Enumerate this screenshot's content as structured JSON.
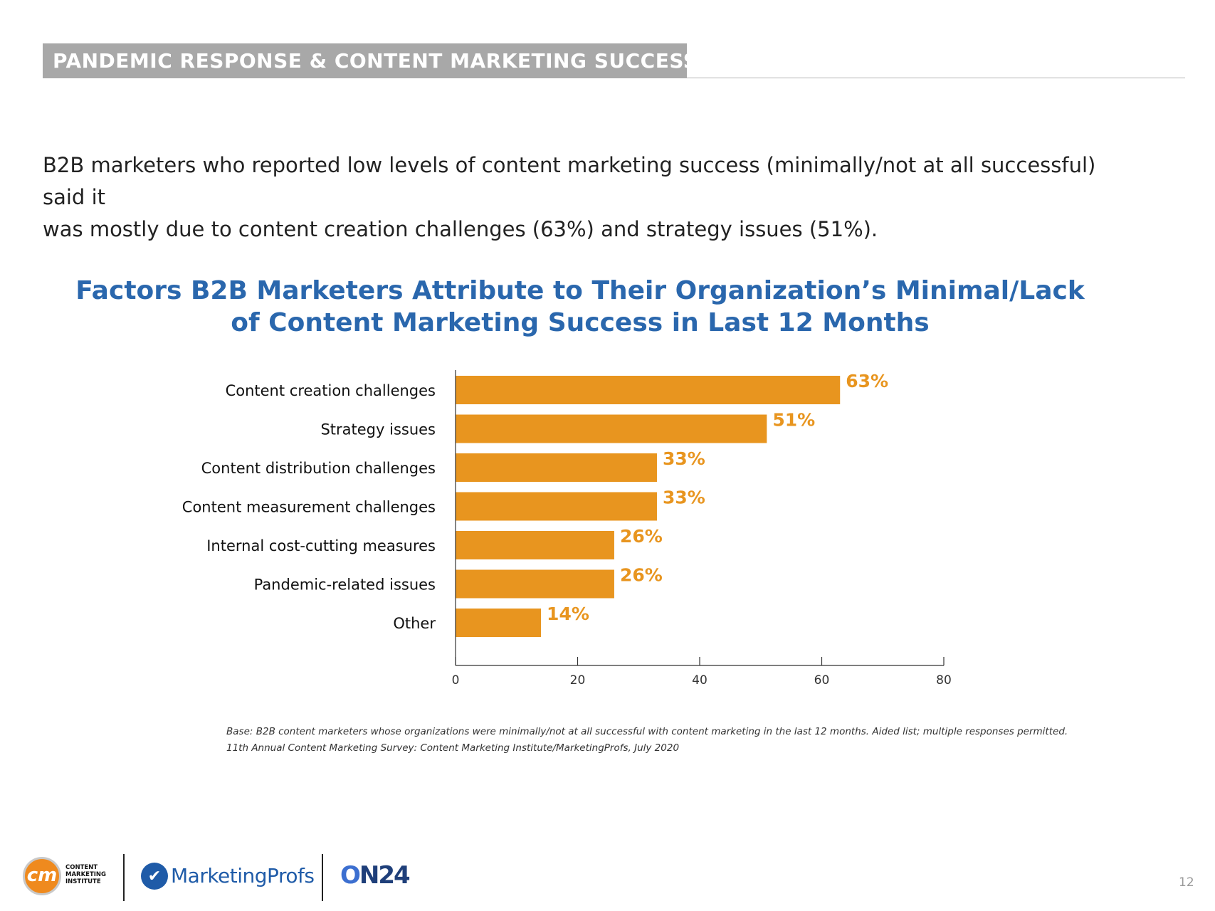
{
  "header": {
    "section_title": "PANDEMIC RESPONSE & CONTENT MARKETING SUCCESS"
  },
  "intro": {
    "line1": "B2B marketers who reported low levels of content marketing success (minimally/not at all successful) said it",
    "line2": "was mostly due to content creation challenges (63%) and strategy issues (51%)."
  },
  "chart_data": {
    "type": "bar",
    "orientation": "horizontal",
    "title_line1": "Factors B2B Marketers Attribute to Their Organization’s Minimal/Lack",
    "title_line2": "of Content Marketing Success in Last 12 Months",
    "categories": [
      "Content creation challenges",
      "Strategy issues",
      "Content distribution challenges",
      "Content measurement challenges",
      "Internal cost-cutting measures",
      "Pandemic-related issues",
      "Other"
    ],
    "values": [
      63,
      51,
      33,
      33,
      26,
      26,
      14
    ],
    "value_labels": [
      "63%",
      "51%",
      "33%",
      "33%",
      "26%",
      "26%",
      "14%"
    ],
    "xlim": [
      0,
      80
    ],
    "xticks": [
      0,
      20,
      40,
      60,
      80
    ],
    "xtick_labels": [
      "0",
      "20",
      "40",
      "60",
      "80"
    ],
    "bar_color": "#e8951f",
    "grid": false
  },
  "footnotes": {
    "base": "Base: B2B content marketers whose organizations were minimally/not at all successful with content marketing in the last 12 months. Aided list; multiple responses permitted.",
    "source": "11th Annual Content Marketing Survey: Content Marketing Institute/MarketingProfs, July 2020"
  },
  "footer": {
    "cmi_mark": "cm",
    "cmi_text": "CONTENT MARKETING INSTITUTE",
    "marketingprofs_text": "MarketingProfs",
    "on24_c": "O",
    "on24_rest": "N24",
    "page_number": "12"
  },
  "colors": {
    "title_blue": "#2a67ad",
    "bar_orange": "#e8951f",
    "section_gray": "#a8a8a8"
  }
}
